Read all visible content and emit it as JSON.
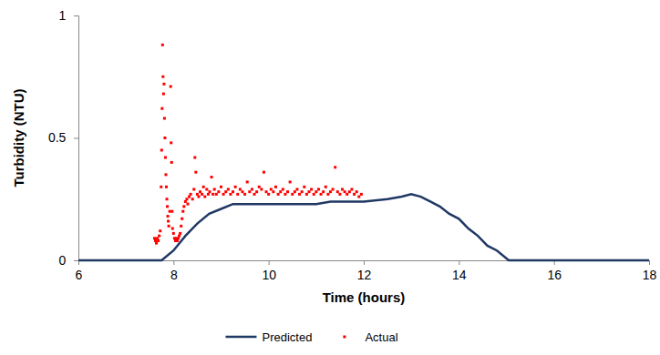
{
  "chart_data": {
    "type": "line",
    "x_label": "Time (hours)",
    "y_label": "Turbidity (NTU)",
    "xlim": [
      6,
      18
    ],
    "xticks": [
      6,
      8,
      10,
      12,
      14,
      16,
      18
    ],
    "ylim": [
      0,
      1
    ],
    "yticks": [
      0,
      0.5,
      1
    ],
    "grid": false,
    "legend": "bottom",
    "series": [
      {
        "name": "Predicted",
        "type": "line",
        "color": "#1f3864",
        "line_style": "solid",
        "x": [
          6,
          7.75,
          8.0,
          8.25,
          8.5,
          8.75,
          9.0,
          9.25,
          10,
          11,
          11.3,
          12,
          12.5,
          12.8,
          13.0,
          13.2,
          13.4,
          13.6,
          13.8,
          14.0,
          14.2,
          14.4,
          14.6,
          14.8,
          15.05,
          18
        ],
        "values": [
          0,
          0,
          0.04,
          0.1,
          0.15,
          0.19,
          0.21,
          0.23,
          0.23,
          0.23,
          0.24,
          0.24,
          0.25,
          0.26,
          0.27,
          0.26,
          0.24,
          0.22,
          0.19,
          0.17,
          0.13,
          0.1,
          0.06,
          0.04,
          0,
          0
        ]
      },
      {
        "name": "Actual",
        "type": "scatter",
        "color": "#ff0000",
        "marker": "square",
        "x": [
          7.6,
          7.62,
          7.64,
          7.66,
          7.68,
          7.7,
          7.72,
          7.74,
          7.75,
          7.76,
          7.77,
          7.78,
          7.79,
          7.8,
          7.81,
          7.82,
          7.83,
          7.84,
          7.85,
          7.86,
          7.87,
          7.88,
          7.89,
          7.9,
          7.92,
          7.94,
          7.95,
          7.96,
          7.97,
          7.98,
          8.0,
          8.02,
          8.04,
          8.06,
          8.08,
          8.1,
          8.12,
          8.14,
          8.16,
          8.18,
          8.2,
          8.22,
          8.25,
          8.28,
          8.3,
          8.33,
          8.36,
          8.4,
          8.43,
          8.45,
          8.47,
          8.5,
          8.53,
          8.56,
          8.6,
          8.63,
          8.66,
          8.7,
          8.73,
          8.76,
          8.8,
          8.83,
          8.86,
          8.9,
          8.95,
          9.0,
          9.05,
          9.1,
          9.15,
          9.2,
          9.25,
          9.3,
          9.35,
          9.4,
          9.45,
          9.5,
          9.55,
          9.6,
          9.65,
          9.7,
          9.75,
          9.8,
          9.85,
          9.9,
          9.95,
          10.0,
          10.05,
          10.1,
          10.15,
          10.2,
          10.25,
          10.3,
          10.35,
          10.4,
          10.45,
          10.5,
          10.55,
          10.6,
          10.65,
          10.7,
          10.75,
          10.8,
          10.85,
          10.9,
          10.95,
          11.0,
          11.05,
          11.1,
          11.15,
          11.2,
          11.25,
          11.3,
          11.35,
          11.4,
          11.45,
          11.5,
          11.55,
          11.6,
          11.65,
          11.7,
          11.75,
          11.8,
          11.85,
          11.9,
          11.95
        ],
        "values": [
          0.09,
          0.08,
          0.07,
          0.09,
          0.08,
          0.1,
          0.12,
          0.3,
          0.45,
          0.62,
          0.88,
          0.75,
          0.68,
          0.72,
          0.58,
          0.5,
          0.42,
          0.35,
          0.3,
          0.25,
          0.22,
          0.18,
          0.16,
          0.14,
          0.2,
          0.71,
          0.48,
          0.4,
          0.2,
          0.13,
          0.11,
          0.09,
          0.08,
          0.09,
          0.08,
          0.09,
          0.1,
          0.11,
          0.14,
          0.17,
          0.2,
          0.22,
          0.24,
          0.25,
          0.23,
          0.26,
          0.27,
          0.25,
          0.29,
          0.42,
          0.36,
          0.27,
          0.26,
          0.28,
          0.27,
          0.3,
          0.26,
          0.29,
          0.27,
          0.28,
          0.34,
          0.27,
          0.29,
          0.27,
          0.28,
          0.3,
          0.27,
          0.28,
          0.29,
          0.27,
          0.28,
          0.3,
          0.27,
          0.29,
          0.28,
          0.27,
          0.32,
          0.28,
          0.29,
          0.27,
          0.28,
          0.3,
          0.29,
          0.36,
          0.28,
          0.27,
          0.29,
          0.28,
          0.3,
          0.27,
          0.28,
          0.29,
          0.27,
          0.28,
          0.32,
          0.27,
          0.28,
          0.29,
          0.27,
          0.28,
          0.3,
          0.27,
          0.28,
          0.29,
          0.27,
          0.28,
          0.29,
          0.27,
          0.28,
          0.3,
          0.27,
          0.28,
          0.29,
          0.38,
          0.28,
          0.27,
          0.29,
          0.28,
          0.27,
          0.28,
          0.29,
          0.27,
          0.28,
          0.26,
          0.27
        ]
      }
    ]
  }
}
